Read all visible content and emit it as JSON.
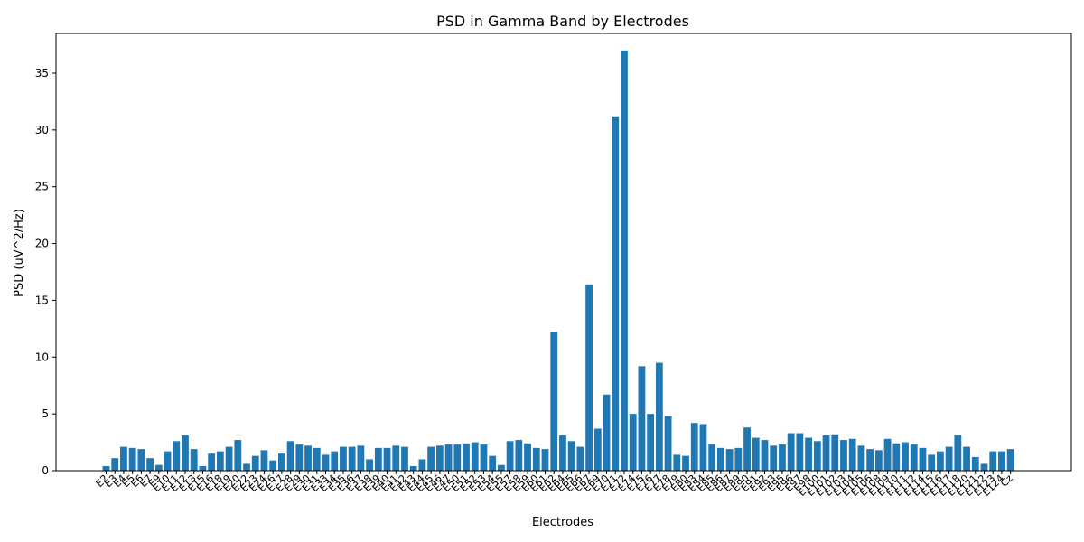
{
  "chart_data": {
    "type": "bar",
    "title": "PSD in Gamma Band by Electrodes",
    "xlabel": "Electrodes",
    "ylabel": "PSD (uV^2/Hz)",
    "ylim": [
      0,
      38.5
    ],
    "yticks": [
      0,
      5,
      10,
      15,
      20,
      25,
      30,
      35
    ],
    "grid": false,
    "bar_color": "#1f77b4",
    "categories": [
      "E2",
      "E3",
      "E4",
      "E5",
      "E6",
      "E7",
      "E9",
      "E10",
      "E11",
      "E12",
      "E13",
      "E15",
      "E16",
      "E18",
      "E19",
      "E20",
      "E22",
      "E23",
      "E24",
      "E26",
      "E27",
      "E28",
      "E29",
      "E30",
      "E31",
      "E33",
      "E34",
      "E35",
      "E36",
      "E37",
      "E38",
      "E39",
      "E40",
      "E41",
      "E42",
      "E43",
      "E44",
      "E45",
      "E46",
      "E47",
      "E50",
      "E51",
      "E52",
      "E53",
      "E54",
      "E55",
      "E57",
      "E58",
      "E59",
      "E60",
      "E61",
      "E62",
      "E64",
      "E65",
      "E66",
      "E67",
      "E69",
      "E70",
      "E71",
      "E72",
      "E74",
      "E75",
      "E76",
      "E77",
      "E78",
      "E79",
      "E80",
      "E83",
      "E84",
      "E85",
      "E86",
      "E87",
      "E89",
      "E90",
      "E91",
      "E92",
      "E93",
      "E95",
      "E96",
      "E97",
      "E98",
      "E100",
      "E101",
      "E102",
      "E103",
      "E104",
      "E105",
      "E106",
      "E108",
      "E109",
      "E110",
      "E111",
      "E112",
      "E114",
      "E115",
      "E116",
      "E117",
      "E118",
      "E120",
      "E121",
      "E122",
      "E123",
      "E124",
      "Cz"
    ],
    "values": [
      0.4,
      1.1,
      2.1,
      2.0,
      1.9,
      1.1,
      0.5,
      1.7,
      2.6,
      3.1,
      1.9,
      0.4,
      1.5,
      1.7,
      2.1,
      2.7,
      0.6,
      1.3,
      1.8,
      0.9,
      1.5,
      2.6,
      2.3,
      2.2,
      2.0,
      1.4,
      1.7,
      2.1,
      2.1,
      2.2,
      1.0,
      2.0,
      2.0,
      2.2,
      2.1,
      0.4,
      1.0,
      2.1,
      2.2,
      2.3,
      2.3,
      2.4,
      2.5,
      2.3,
      1.3,
      0.5,
      2.6,
      2.7,
      2.4,
      2.0,
      1.9,
      12.2,
      3.1,
      2.6,
      2.1,
      16.4,
      3.7,
      6.7,
      31.2,
      37.0,
      5.0,
      9.2,
      5.0,
      9.5,
      4.8,
      1.4,
      1.3,
      4.2,
      4.1,
      2.3,
      2.0,
      1.9,
      2.0,
      3.8,
      2.9,
      2.7,
      2.2,
      2.3,
      3.3,
      3.3,
      2.9,
      2.6,
      3.1,
      3.2,
      2.7,
      2.8,
      2.2,
      1.9,
      1.8,
      2.8,
      2.4,
      2.5,
      2.3,
      2.0,
      1.4,
      1.7,
      2.1,
      3.1,
      2.1,
      1.2,
      0.6,
      1.7,
      1.7,
      1.9
    ]
  }
}
